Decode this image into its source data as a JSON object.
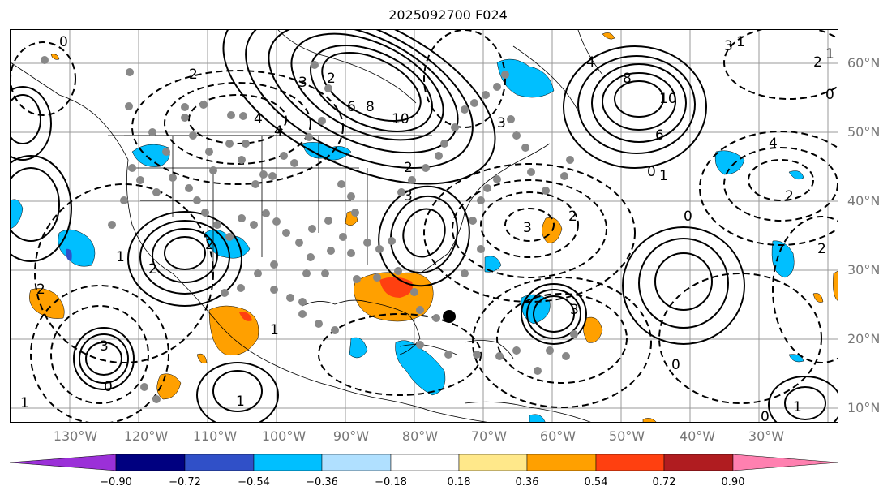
{
  "title": "2025092700 F024",
  "lat_labels": [
    "60°N",
    "50°N",
    "40°N",
    "30°N",
    "20°N",
    "10°N"
  ],
  "lon_labels": [
    "130°W",
    "120°W",
    "110°W",
    "100°W",
    "90°W",
    "80°W",
    "70°W",
    "60°W",
    "50°W",
    "40°W",
    "30°W"
  ],
  "colorbar": {
    "ticks": [
      "−0.90",
      "−0.72",
      "−0.54",
      "−0.36",
      "−0.18",
      "0.18",
      "0.36",
      "0.54",
      "0.72",
      "0.90"
    ],
    "colors": [
      "#9b30d8",
      "#000080",
      "#3050c8",
      "#00bfff",
      "#b0e0ff",
      "#ffffff",
      "#ffe88a",
      "#ffa000",
      "#ff4010",
      "#b01c20",
      "#ff80b0"
    ]
  },
  "contour_labels": [
    "0",
    "2",
    "4",
    "6",
    "8",
    "10",
    "3",
    "2",
    "4",
    "1",
    "3",
    "2",
    "1",
    "0",
    "3",
    "8",
    "10",
    "6",
    "4",
    "2",
    "1",
    "0",
    "4",
    "3",
    "2",
    "2",
    "3",
    "2",
    "1",
    "0",
    "1",
    "2",
    "1",
    "0",
    "0",
    "3",
    "1",
    "2",
    "3",
    "1",
    "0",
    "2"
  ],
  "marker": "storm-center"
}
